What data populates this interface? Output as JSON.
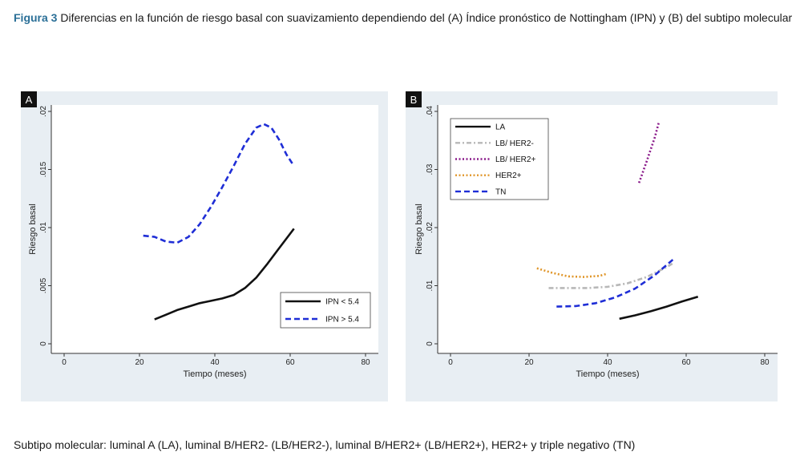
{
  "figure": {
    "label": "Figura 3",
    "caption": "Diferencias en la función de riesgo basal con suavizamiento dependiendo del (A) Índice pronóstico de Nottingham (IPN) y (B) del subtipo molecular",
    "footnote": "Subtipo molecular: luminal A (LA), luminal B/HER2- (LB/HER2-), luminal B/HER2+ (LB/HER2+), HER2+ y triple negativo (TN)"
  },
  "colors": {
    "panel_bg": "#e8eef3",
    "plot_bg": "#ffffff",
    "black": "#111111",
    "blue": "#1f2ed6",
    "purple": "#8a1a8a",
    "orange": "#e0962a",
    "gray": "#b8b8b8"
  },
  "chart_data": [
    {
      "panel": "A",
      "type": "line",
      "xlabel": "Tiempo (meses)",
      "ylabel": "Riesgo basal",
      "xlim": [
        0,
        80
      ],
      "ylim": [
        0,
        0.02
      ],
      "xticks": [
        0,
        20,
        40,
        60,
        80
      ],
      "xtick_labels": [
        "0",
        "20",
        "40",
        "60",
        "80"
      ],
      "yticks": [
        0,
        0.005,
        0.01,
        0.015,
        0.02
      ],
      "ytick_labels": [
        "0",
        ".005",
        ".01",
        ".015",
        ".02"
      ],
      "legend_position": "bottom-right",
      "series": [
        {
          "name": "IPN < 5.4",
          "color": "#111111",
          "dash": "solid",
          "x": [
            24,
            27,
            30,
            33,
            36,
            39,
            42,
            45,
            48,
            51,
            54,
            57,
            61
          ],
          "y": [
            0.0021,
            0.0025,
            0.0029,
            0.0032,
            0.0035,
            0.0037,
            0.0039,
            0.0042,
            0.0048,
            0.0057,
            0.0069,
            0.0082,
            0.0099
          ]
        },
        {
          "name": "IPN > 5.4",
          "color": "#1f2ed6",
          "dash": "dashed",
          "x": [
            21,
            24,
            27,
            30,
            33,
            36,
            39,
            42,
            45,
            48,
            51,
            53,
            55,
            57,
            59,
            61
          ],
          "y": [
            0.0093,
            0.0092,
            0.0088,
            0.0087,
            0.0092,
            0.0103,
            0.0118,
            0.0135,
            0.0153,
            0.0172,
            0.0186,
            0.0189,
            0.0186,
            0.0176,
            0.0163,
            0.0153
          ]
        }
      ]
    },
    {
      "panel": "B",
      "type": "line",
      "xlabel": "Tiempo (meses)",
      "ylabel": "Riesgo basal",
      "xlim": [
        0,
        80
      ],
      "ylim": [
        0,
        0.04
      ],
      "xticks": [
        0,
        20,
        40,
        60,
        80
      ],
      "xtick_labels": [
        "0",
        "20",
        "40",
        "60",
        "80"
      ],
      "yticks": [
        0,
        0.01,
        0.02,
        0.03,
        0.04
      ],
      "ytick_labels": [
        "0",
        ".01",
        ".02",
        ".03",
        ".04"
      ],
      "legend_position": "top-left",
      "series": [
        {
          "name": "LA",
          "color": "#111111",
          "dash": "solid",
          "x": [
            43,
            47,
            51,
            55,
            59,
            63
          ],
          "y": [
            0.0043,
            0.0049,
            0.0056,
            0.0064,
            0.0073,
            0.0081
          ]
        },
        {
          "name": "LB/ HER2-",
          "color": "#b8b8b8",
          "dash": "dashdot",
          "x": [
            25,
            30,
            35,
            40,
            45,
            50,
            55,
            57
          ],
          "y": [
            0.0096,
            0.0096,
            0.0096,
            0.0098,
            0.0104,
            0.0115,
            0.0132,
            0.014
          ]
        },
        {
          "name": "LB/ HER2+",
          "color": "#8a1a8a",
          "dash": "dotted",
          "x": [
            48,
            50,
            52,
            53
          ],
          "y": [
            0.0277,
            0.0315,
            0.0355,
            0.038
          ]
        },
        {
          "name": "HER2+",
          "color": "#e0962a",
          "dash": "dotted",
          "x": [
            22,
            26,
            30,
            34,
            38,
            40
          ],
          "y": [
            0.013,
            0.0122,
            0.0116,
            0.0115,
            0.0117,
            0.0121
          ]
        },
        {
          "name": "TN",
          "color": "#1f2ed6",
          "dash": "dashed",
          "x": [
            27,
            32,
            37,
            42,
            47,
            52,
            57
          ],
          "y": [
            0.0064,
            0.0065,
            0.007,
            0.008,
            0.0095,
            0.0118,
            0.0147
          ]
        }
      ]
    }
  ]
}
